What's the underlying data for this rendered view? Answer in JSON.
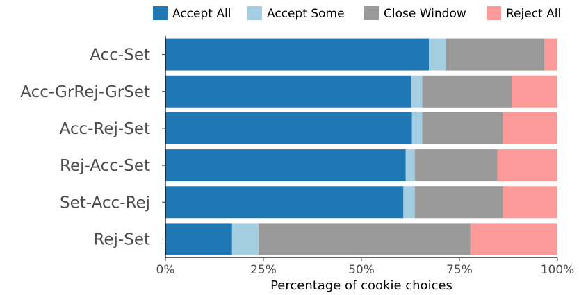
{
  "chart_data": {
    "type": "bar",
    "orientation": "horizontal",
    "stacked": true,
    "title": "",
    "xlabel": "Percentage of cookie choices",
    "ylabel": "",
    "xlim": [
      0,
      100
    ],
    "xticks": [
      0,
      25,
      50,
      75,
      100
    ],
    "xtick_labels": [
      "0%",
      "25%",
      "50%",
      "75%",
      "100%"
    ],
    "grid": false,
    "legend_position": "top",
    "categories": [
      "Acc-Set",
      "Acc-GrRej-GrSet",
      "Acc-Rej-Set",
      "Rej-Acc-Set",
      "Set-Acc-Rej",
      "Rej-Set"
    ],
    "series": [
      {
        "name": "Accept All",
        "color": "#1f78b4",
        "values": [
          67.2,
          62.8,
          62.9,
          61.3,
          60.7,
          17.0
        ]
      },
      {
        "name": "Accept Some",
        "color": "#a6cee3",
        "values": [
          4.4,
          2.7,
          2.6,
          2.3,
          2.9,
          6.8
        ]
      },
      {
        "name": "Close Window",
        "color": "#999999",
        "values": [
          25.1,
          22.8,
          20.6,
          21.1,
          22.5,
          54.0
        ]
      },
      {
        "name": "Reject All",
        "color": "#fb9a99",
        "values": [
          3.3,
          11.7,
          13.9,
          15.3,
          13.9,
          22.2
        ]
      }
    ]
  }
}
